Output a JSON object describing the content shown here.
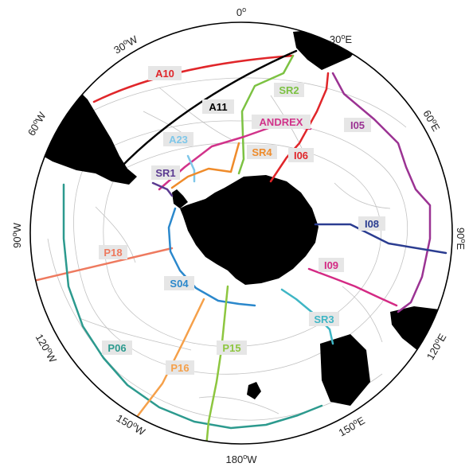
{
  "map": {
    "type": "south-polar-stereographic",
    "colors": {
      "land": "#000000",
      "contour": "#b8b8b8",
      "rim": "#000000"
    },
    "longitude_labels": {
      "lon_0": "0",
      "lon_30e": "30",
      "lon_60e": "60",
      "lon_90e": "90",
      "lon_120e": "120",
      "lon_150e": "150",
      "lon_180w": "180",
      "lon_150w": "150",
      "lon_120w": "120",
      "lon_90w": "90",
      "lon_60w": "60",
      "lon_30w": "30"
    },
    "hemisphere": {
      "lon_0": "",
      "lon_30e": "E",
      "lon_60e": "E",
      "lon_90e": "E",
      "lon_120e": "E",
      "lon_150e": "E",
      "lon_180w": "W",
      "lon_150w": "W",
      "lon_120w": "W",
      "lon_90w": "W",
      "lon_60w": "W",
      "lon_30w": "W"
    },
    "sections": [
      {
        "id": "A10",
        "color": "#e0262a"
      },
      {
        "id": "A11",
        "color": "#000000"
      },
      {
        "id": "SR2",
        "color": "#7cc242"
      },
      {
        "id": "ANDREX",
        "color": "#d1338a"
      },
      {
        "id": "I05",
        "color": "#9b3393"
      },
      {
        "id": "A23",
        "color": "#7fc7e9"
      },
      {
        "id": "SR4",
        "color": "#ef8b2a"
      },
      {
        "id": "I06",
        "color": "#e0262a"
      },
      {
        "id": "SR1",
        "color": "#5b3a91"
      },
      {
        "id": "I08",
        "color": "#2b3d91"
      },
      {
        "id": "P18",
        "color": "#ee7a5f"
      },
      {
        "id": "I09",
        "color": "#d42a84"
      },
      {
        "id": "S04",
        "color": "#2b88cc"
      },
      {
        "id": "SR3",
        "color": "#3fb6c5"
      },
      {
        "id": "P06",
        "color": "#2c9a8e"
      },
      {
        "id": "P15",
        "color": "#8dc63f"
      },
      {
        "id": "P16",
        "color": "#f5a04a"
      }
    ]
  }
}
